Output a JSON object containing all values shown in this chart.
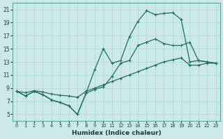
{
  "xlabel": "Humidex (Indice chaleur)",
  "background_color": "#cce8e8",
  "grid_color": "#b0d8d8",
  "line_color": "#1a6e60",
  "xlim": [
    -0.5,
    23.5
  ],
  "ylim": [
    4.0,
    22.0
  ],
  "xticks": [
    0,
    1,
    2,
    3,
    4,
    5,
    6,
    7,
    8,
    9,
    10,
    11,
    12,
    13,
    14,
    15,
    16,
    17,
    18,
    19,
    20,
    21,
    22,
    23
  ],
  "yticks": [
    5,
    7,
    9,
    11,
    13,
    15,
    17,
    19,
    21
  ],
  "series": [
    {
      "x": [
        0,
        1,
        2,
        3,
        4,
        5,
        6,
        7,
        8,
        9,
        10,
        11,
        12,
        13,
        14,
        15,
        16,
        17,
        18,
        19,
        20,
        21,
        22,
        23
      ],
      "y": [
        8.5,
        7.8,
        8.5,
        8.0,
        7.2,
        6.8,
        6.3,
        5.0,
        8.2,
        11.8,
        15.0,
        12.8,
        13.2,
        16.8,
        19.2,
        20.8,
        20.2,
        20.4,
        20.5,
        19.5,
        13.0,
        13.2,
        13.0,
        12.8
      ]
    },
    {
      "x": [
        0,
        1,
        2,
        3,
        4,
        5,
        6,
        7,
        8,
        9,
        10,
        11,
        12,
        13,
        14,
        15,
        16,
        17,
        18,
        19,
        20,
        21,
        22,
        23
      ],
      "y": [
        8.5,
        8.3,
        8.6,
        8.4,
        8.1,
        7.9,
        7.8,
        7.6,
        8.5,
        9.0,
        9.5,
        10.0,
        10.5,
        11.0,
        11.5,
        12.0,
        12.5,
        13.0,
        13.3,
        13.6,
        12.5,
        12.5,
        12.8,
        12.8
      ]
    },
    {
      "x": [
        0,
        1,
        2,
        3,
        4,
        5,
        6,
        7,
        8,
        9,
        10,
        11,
        12,
        13,
        14,
        15,
        16,
        17,
        18,
        19,
        20,
        21,
        22,
        23
      ],
      "y": [
        8.5,
        7.8,
        8.5,
        8.0,
        7.2,
        6.8,
        6.3,
        5.0,
        8.2,
        8.8,
        9.2,
        10.8,
        12.8,
        13.2,
        15.5,
        16.0,
        16.5,
        15.8,
        15.5,
        15.5,
        16.0,
        13.2,
        13.0,
        12.8
      ]
    }
  ]
}
